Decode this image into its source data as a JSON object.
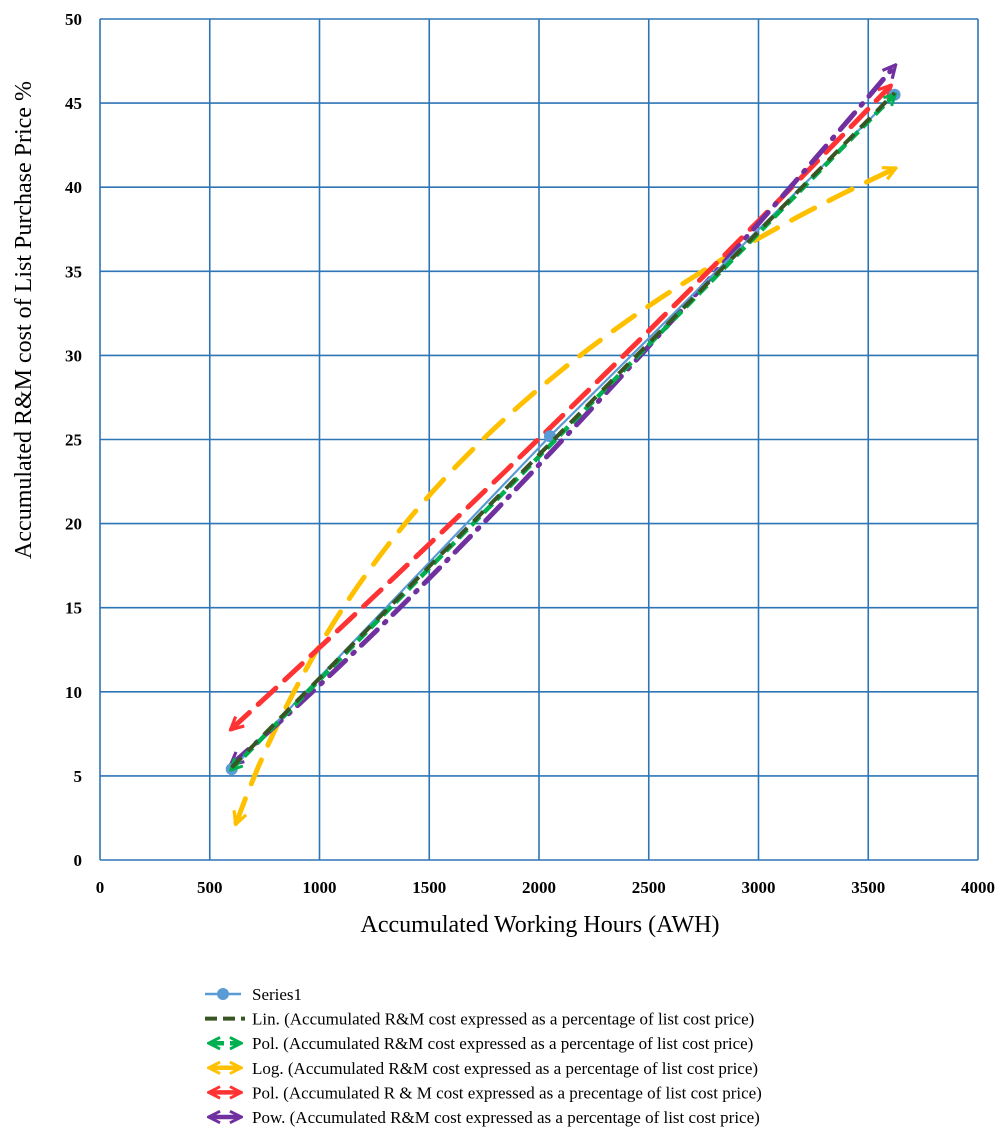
{
  "chart_data": {
    "type": "scatter",
    "title": "",
    "xlabel": "Accumulated Working Hours (AWH)",
    "ylabel": "Accumulated R&M cost of List Purchase Price %",
    "xlim": [
      0,
      4000
    ],
    "ylim": [
      0,
      50
    ],
    "x_ticks": [
      "0",
      "500",
      "1000",
      "1500",
      "2000",
      "2500",
      "3000",
      "3500",
      "4000"
    ],
    "y_ticks": [
      "0",
      "5",
      "10",
      "15",
      "20",
      "25",
      "30",
      "35",
      "40",
      "45",
      "50"
    ],
    "grid": true,
    "legend_position": "bottom",
    "series": [
      {
        "name": "Series1",
        "kind": "markers-line",
        "color": "#5b9bd5",
        "x": [
          600,
          2050,
          3620
        ],
        "y": [
          5.4,
          25.2,
          45.5
        ]
      },
      {
        "name": "Lin. (Accumulated R&M cost expressed as a percentage of list cost price)",
        "kind": "trend-linear",
        "color": "#375623",
        "x": [
          600,
          3620
        ],
        "y": [
          5.5,
          45.6
        ]
      },
      {
        "name": "Pol. (Accumulated R&M cost expressed as a percentage of list cost price)",
        "kind": "trend-poly",
        "color": "#00b050",
        "x": [
          600,
          3620
        ],
        "y": [
          5.4,
          45.5
        ]
      },
      {
        "name": "Log. (Accumulated R&M cost expressed as a percentage of list cost price)",
        "kind": "trend-log",
        "color": "#ffc000",
        "x": [
          620,
          3620
        ],
        "y": [
          2.2,
          41.1
        ]
      },
      {
        "name": "Pol. (Accumulated R & M cost expressed as a precentage of list cost price)",
        "kind": "trend-poly2",
        "color": "#ff3333",
        "x": [
          600,
          3600
        ],
        "y": [
          7.8,
          46.0
        ]
      },
      {
        "name": "Pow. (Accumulated R&M cost expressed as a percentage of list cost price)",
        "kind": "trend-power",
        "color": "#7030a0",
        "x": [
          600,
          3620
        ],
        "y": [
          5.7,
          47.2
        ]
      }
    ]
  }
}
